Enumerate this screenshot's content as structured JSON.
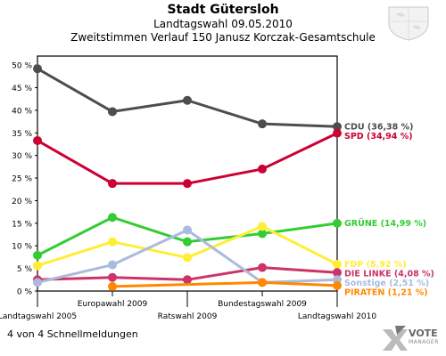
{
  "header": {
    "title": "Stadt Gütersloh",
    "subtitle": "Landtagswahl 09.05.2010",
    "subtitle2": "Zweitstimmen Verlauf 150 Janusz Korczak-Gesamtschule"
  },
  "footer": {
    "note": "4 von 4 Schnellmeldungen",
    "brand_line1": "VOTE",
    "brand_line2": "MANAGER"
  },
  "chart_data": {
    "type": "line",
    "categories": [
      "Landtagswahl 2005",
      "Europawahl 2009",
      "Ratswahl 2009",
      "Bundestagswahl 2009",
      "Landtagswahl 2010"
    ],
    "ylim": [
      0,
      52
    ],
    "yticks": [
      0,
      5,
      10,
      15,
      20,
      25,
      30,
      35,
      40,
      45,
      50
    ],
    "ytick_labels": [
      "0 %",
      "5 %",
      "10 %",
      "15 %",
      "20 %",
      "25 %",
      "30 %",
      "35 %",
      "40 %",
      "45 %",
      "50 %"
    ],
    "grid": false,
    "series": [
      {
        "name": "CDU",
        "label": "CDU (36,38 %)",
        "color": "#4d4d4d",
        "values": [
          49.2,
          39.7,
          42.2,
          37.0,
          36.38
        ]
      },
      {
        "name": "SPD",
        "label": "SPD (34,94 %)",
        "color": "#cc0033",
        "values": [
          33.3,
          23.8,
          23.8,
          27.0,
          34.94
        ]
      },
      {
        "name": "GRÜNE",
        "label": "GRÜNE (14,99 %)",
        "color": "#33cc33",
        "values": [
          7.9,
          16.3,
          10.9,
          12.7,
          14.99
        ]
      },
      {
        "name": "FDP",
        "label": "FDP (5,92 %)",
        "color": "#ffee33",
        "values": [
          5.6,
          10.9,
          7.4,
          14.3,
          5.92
        ]
      },
      {
        "name": "DIE LINKE",
        "label": "DIE LINKE (4,08 %)",
        "color": "#cc3366",
        "values": [
          2.5,
          3.0,
          2.5,
          5.2,
          4.08
        ]
      },
      {
        "name": "Sonstige",
        "label": "Sonstige (2,51 %)",
        "color": "#aabbdd",
        "values": [
          1.9,
          5.8,
          13.5,
          1.9,
          2.51
        ]
      },
      {
        "name": "PIRATEN",
        "label": "PIRATEN (1,21 %)",
        "color": "#ff8800",
        "values": [
          null,
          1.0,
          null,
          1.9,
          1.21
        ]
      }
    ]
  }
}
